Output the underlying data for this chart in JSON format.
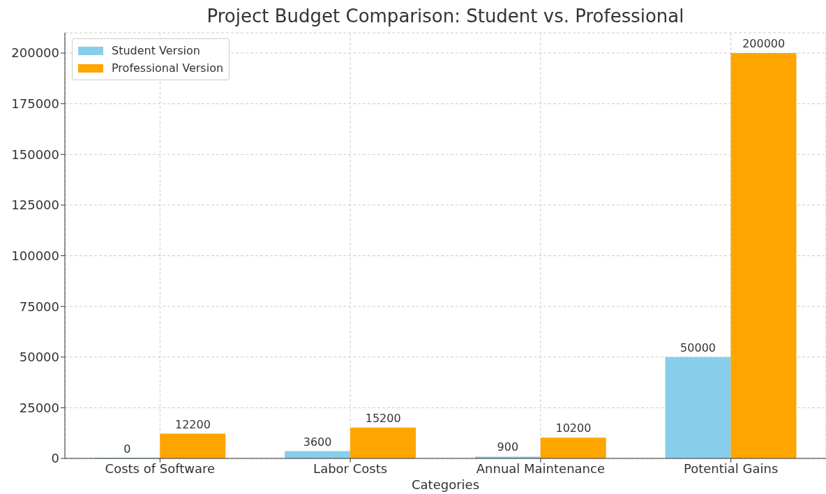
{
  "chart_data": {
    "type": "bar",
    "title": "Project Budget Comparison: Student vs. Professional",
    "xlabel": "Categories",
    "categories": [
      "Costs of Software",
      "Labor Costs",
      "Annual Maintenance",
      "Potential Gains"
    ],
    "series": [
      {
        "name": "Student Version",
        "color": "#87ceeb",
        "values": [
          0,
          3600,
          900,
          50000
        ]
      },
      {
        "name": "Professional Version",
        "color": "#ffa500",
        "values": [
          12200,
          15200,
          10200,
          200000
        ]
      }
    ],
    "ylim": [
      0,
      210000
    ],
    "yticks": [
      0,
      25000,
      50000,
      75000,
      100000,
      125000,
      150000,
      175000,
      200000
    ],
    "grid": true,
    "legend": "top left",
    "data_labels": true
  }
}
